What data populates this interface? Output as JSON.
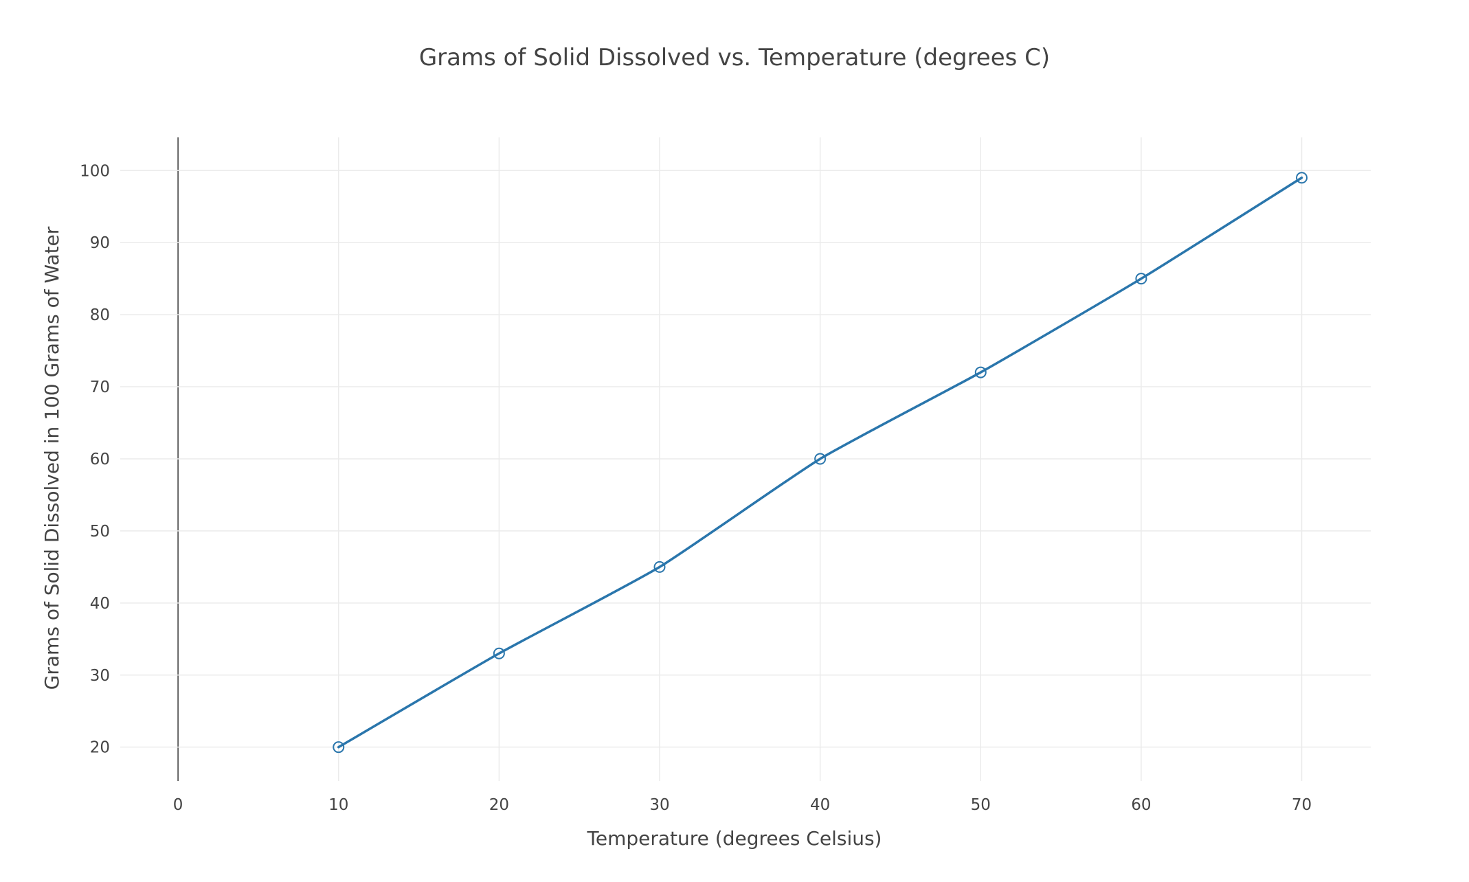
{
  "chart_data": {
    "type": "line",
    "title": "Grams of Solid Dissolved vs. Temperature (degrees C)",
    "xlabel": "Temperature (degrees Celsius)",
    "ylabel": "Grams of Solid Dissolved in 100 Grams of Water",
    "x": [
      10,
      20,
      30,
      40,
      50,
      60,
      70
    ],
    "series": [
      {
        "values": [
          20,
          33,
          45,
          60,
          72,
          85,
          99
        ]
      }
    ],
    "x_ticks": [
      "0",
      "10",
      "20",
      "30",
      "40",
      "50",
      "60",
      "70"
    ],
    "y_ticks": [
      "20",
      "30",
      "40",
      "50",
      "60",
      "70",
      "80",
      "90",
      "100"
    ],
    "xlim": [
      -3.6,
      74.3
    ],
    "ylim": [
      15.3,
      104.6
    ],
    "grid": true,
    "legend": "none",
    "markers": "open-circle",
    "line_shape": "smooth",
    "colors": {
      "series": "#2a76ac",
      "grid": "#ebebeb",
      "zero_line": "#444444",
      "text": "#444444"
    }
  }
}
